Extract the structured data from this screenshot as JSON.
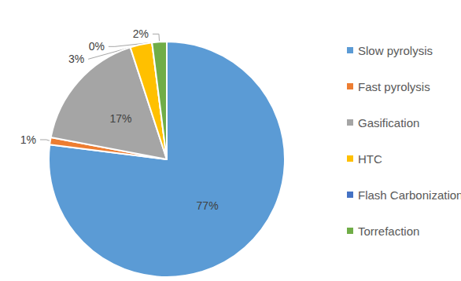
{
  "chart_data": {
    "type": "pie",
    "categories": [
      "Slow pyrolysis",
      "Fast pyrolysis",
      "Gasification",
      "HTC",
      "Flash Carbonization",
      "Torrefaction"
    ],
    "values": [
      77,
      1,
      17,
      3,
      0,
      2
    ],
    "value_labels": [
      "77%",
      "1%",
      "17%",
      "3%",
      "0%",
      "2%"
    ],
    "colors": [
      "#5b9bd5",
      "#ed7d31",
      "#a5a5a5",
      "#ffc000",
      "#4472c4",
      "#70ad47"
    ],
    "data_labels": true,
    "legend": "right"
  }
}
